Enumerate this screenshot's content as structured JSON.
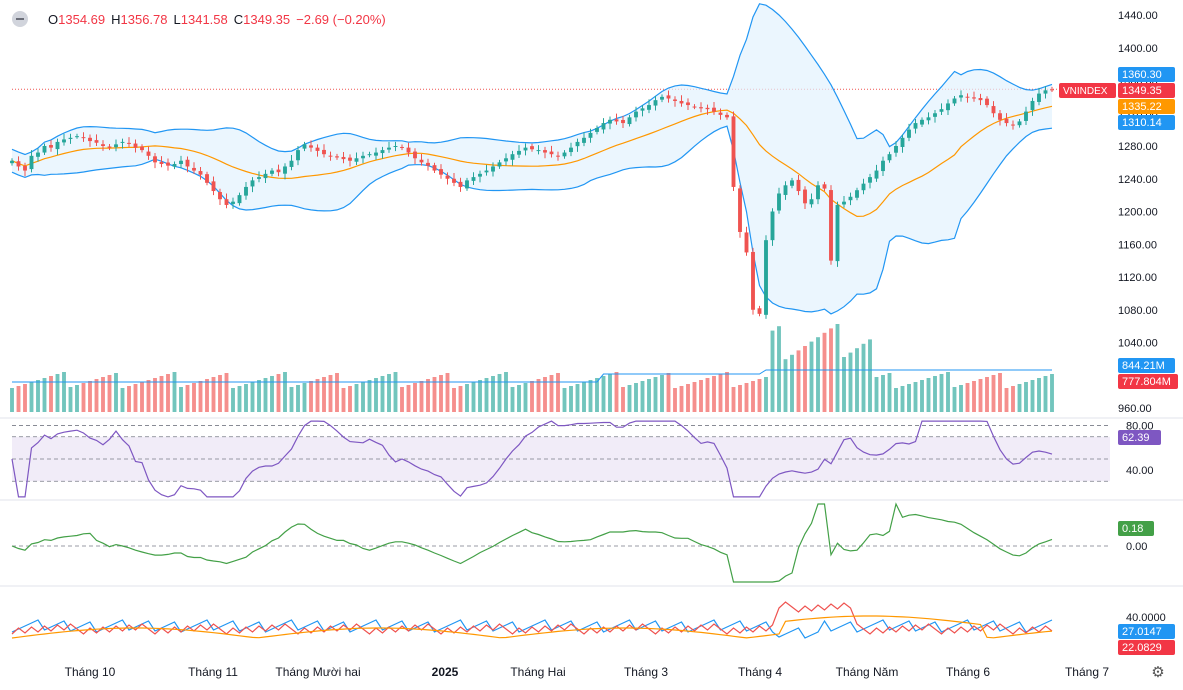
{
  "header": {
    "o_label": "O",
    "o_value": "1354.69",
    "h_label": "H",
    "h_value": "1356.78",
    "l_label": "L",
    "l_value": "1341.58",
    "c_label": "C",
    "c_value": "1349.35",
    "change": "−2.69 (−0.20%)"
  },
  "colors": {
    "up": "#26a69a",
    "down": "#ef5350",
    "bb_line": "#2196f3",
    "bb_fill": "#e3f2fd",
    "basis": "#ff9800",
    "rsi": "#7e57c2",
    "rsi_band": "#ede7f6",
    "mom": "#43a047",
    "dmi_plus": "#2196f3",
    "dmi_minus": "#ef5350",
    "adx": "#ff9800"
  },
  "chart_data": {
    "type": "candlestick",
    "symbol": "VNINDEX",
    "x_ticks": [
      "Tháng 10",
      "Tháng 11",
      "Tháng Mười hai",
      "2025",
      "Tháng Hai",
      "Tháng 3",
      "Tháng 4",
      "Tháng Năm",
      "Tháng 6",
      "Tháng 7"
    ],
    "price_ticks": [
      "1440.00",
      "1400.00",
      "1360.00",
      "1320.00",
      "1280.00",
      "1240.00",
      "1200.00",
      "1160.00",
      "1120.00",
      "1080.00",
      "1040.00",
      "960.00"
    ],
    "price_range": [
      960,
      1440
    ],
    "price_series": [
      1262,
      1255,
      1250,
      1268,
      1272,
      1280,
      1278,
      1285,
      1288,
      1290,
      1292,
      1290,
      1286,
      1284,
      1280,
      1278,
      1282,
      1285,
      1283,
      1278,
      1275,
      1268,
      1260,
      1258,
      1256,
      1258,
      1262,
      1255,
      1250,
      1245,
      1235,
      1225,
      1215,
      1208,
      1212,
      1220,
      1230,
      1238,
      1242,
      1246,
      1250,
      1248,
      1255,
      1262,
      1275,
      1282,
      1278,
      1274,
      1270,
      1268,
      1266,
      1264,
      1262,
      1265,
      1268,
      1270,
      1272,
      1275,
      1278,
      1280,
      1278,
      1272,
      1265,
      1260,
      1256,
      1250,
      1245,
      1240,
      1235,
      1230,
      1238,
      1242,
      1246,
      1250,
      1255,
      1260,
      1265,
      1270,
      1274,
      1278,
      1276,
      1275,
      1272,
      1270,
      1268,
      1272,
      1278,
      1285,
      1290,
      1296,
      1302,
      1308,
      1312,
      1310,
      1308,
      1315,
      1322,
      1326,
      1330,
      1336,
      1340,
      1338,
      1335,
      1332,
      1330,
      1328,
      1326,
      1325,
      1322,
      1318,
      1315,
      1230,
      1175,
      1150,
      1080,
      1075,
      1165,
      1200,
      1222,
      1232,
      1238,
      1225,
      1210,
      1215,
      1232,
      1228,
      1140,
      1208,
      1212,
      1218,
      1226,
      1234,
      1242,
      1250,
      1262,
      1270,
      1280,
      1290,
      1300,
      1308,
      1312,
      1315,
      1320,
      1325,
      1332,
      1338,
      1342,
      1340,
      1338,
      1336,
      1330,
      1320,
      1312,
      1308,
      1306,
      1310,
      1322,
      1335,
      1344,
      1348,
      1349
    ],
    "last_close": 1349.35,
    "bollinger": {
      "upper": 1360.3,
      "basis": 1335.22,
      "lower": 1310.14
    },
    "volume": {
      "ma": "844.21M",
      "last": "777.804M"
    },
    "rsi": {
      "ticks": [
        "80.00",
        "40.00"
      ],
      "value": "62.39",
      "upper_band": 70,
      "lower_band": 30,
      "range": [
        15,
        85
      ]
    },
    "momentum": {
      "ticks": [
        "0.00"
      ],
      "value": "0.18"
    },
    "dmi": {
      "ticks": [
        "40.0000"
      ],
      "plus_di": "27.0147",
      "minus_di": "22.0829"
    }
  },
  "labels": {
    "bb_upper": "1360.30",
    "symbol_price": "1349.35",
    "bb_basis": "1335.22",
    "bb_lower": "1310.14",
    "vol_ma": "844.21M",
    "vol_last": "777.804M",
    "rsi_value": "62.39",
    "mom_value": "0.18",
    "dmi_plus": "27.0147",
    "dmi_minus": "22.0829"
  },
  "settings_icon": "gear-icon"
}
